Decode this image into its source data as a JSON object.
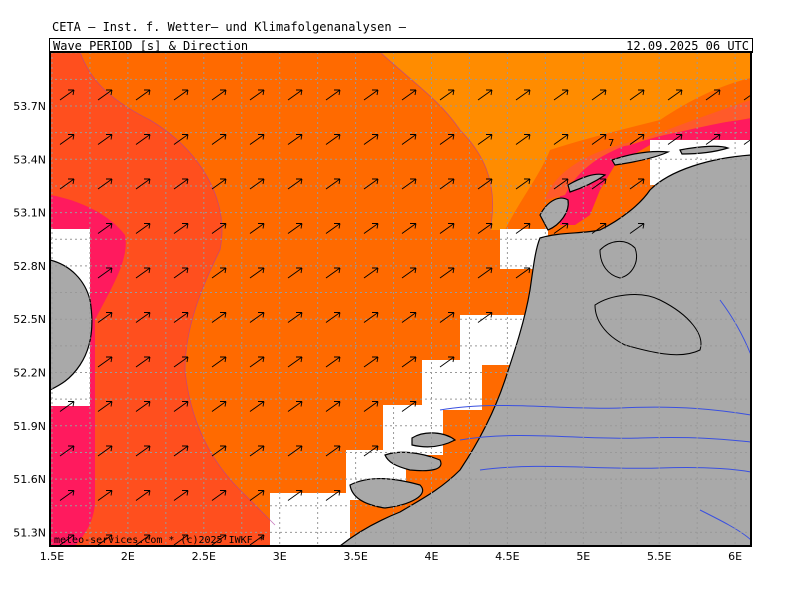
{
  "header": {
    "title": "CETA — Inst. f. Wetter— und Klimafolgenanalysen —",
    "subtitle": "Wave PERIOD [s] & Direction",
    "datetime": "12.09.2025 06 UTC"
  },
  "map": {
    "lat_ticks": [
      "53.7N",
      "53.4N",
      "53.1N",
      "52.8N",
      "52.5N",
      "52.2N",
      "51.9N",
      "51.6N",
      "51.3N"
    ],
    "lon_ticks": [
      "1.5E",
      "2E",
      "2.5E",
      "3E",
      "3.5E",
      "4E",
      "4.5E",
      "5E",
      "5.5E",
      "6E"
    ],
    "contour_label": "7",
    "credit": "meteo-services.com * (c)2025 IWKF * ",
    "colors": {
      "land": "#a9a9a9",
      "period_high": "#ff1a5e",
      "period_mid_high": "#ff4f1e",
      "period_mid": "#ff6a00",
      "period_low": "#ff8c00",
      "grid": "#999999",
      "water_lines": "#3a50e0"
    },
    "direction_arrows": "northeast"
  }
}
